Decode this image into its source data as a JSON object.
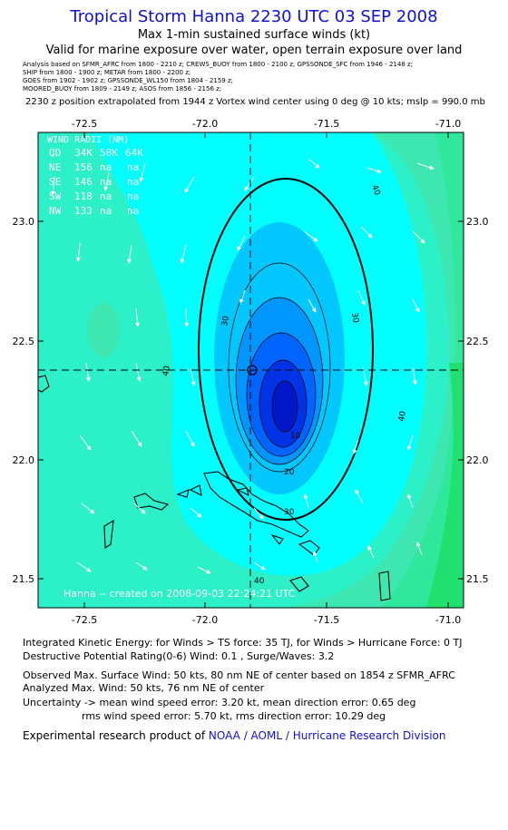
{
  "header": {
    "title": "Tropical Storm Hanna 2230 UTC 03 SEP 2008",
    "subtitle1": "Max 1-min sustained surface winds (kt)",
    "subtitle2": "Valid for marine exposure over water, open terrain exposure over land",
    "analysis_lines": [
      "Analysis based on  SFMR_AFRC from 1800 - 2210 z;  CREWS_BUOY from 1800 - 2100 z;  GPSSONDE_SFC from 1946 - 2148 z;",
      "SHIP from 1800 - 1900 z;  METAR from 1800 - 2200 z;",
      "GOES from 1902 - 1902 z;  GPSSONDE_WL150 from 1804 - 2159 z;",
      "MOORED_BUOY from 1809 - 2149 z;  ASOS from 1856 - 2156 z;"
    ],
    "position_note": "2230 z position extrapolated from 1944 z Vortex wind center using 0 deg @ 10 kts; mslp = 990.0 mb"
  },
  "map": {
    "lon_ticks": [
      "-72.5",
      "-72.0",
      "-71.5",
      "-71.0"
    ],
    "lat_ticks": [
      "23.0",
      "22.5",
      "22.0",
      "21.5"
    ],
    "contour_labels": [
      "40",
      "30",
      "30",
      "40",
      "40",
      "10",
      "20",
      "30",
      "40",
      "40"
    ],
    "credit": "Hanna -- created on 2008-09-03 22:24:21 UTC",
    "wind_radii": {
      "title": "WIND RADII (NM)",
      "header": [
        "QD",
        "34K",
        "50K",
        "64K"
      ],
      "rows": [
        [
          "NE",
          "156",
          "na",
          "na"
        ],
        [
          "SE",
          "146",
          "na",
          "na"
        ],
        [
          "SW",
          "118",
          "na",
          "na"
        ],
        [
          "NW",
          "133",
          "na",
          "na"
        ]
      ]
    },
    "colors": {
      "outer": "#3ee6b0",
      "band1": "#2cf0c8",
      "band2": "#00ffff",
      "band3": "#00c8ff",
      "band4": "#0096ff",
      "band5": "#0064ff",
      "core": "#0032e6"
    }
  },
  "info": {
    "ike": "Integrated Kinetic Energy:  for Winds > TS force: 35 TJ,  for Winds > Hurricane Force: 0 TJ",
    "dpr": "Destructive Potential Rating(0-6)   Wind: 0.1 , Surge/Waves: 3.2",
    "obs_max": "Observed Max. Surface Wind: 50 kts, 80 nm NE of center based on 1854 z SFMR_AFRC",
    "ana_max": "Analyzed Max. Wind: 50 kts, 76 nm NE of center",
    "unc1": "Uncertainty -> mean wind speed error: 3.20 kt,   mean direction error: 0.65 deg",
    "unc2": "rms wind speed error: 5.70 kt,   rms direction error: 10.29 deg",
    "product_prefix": "Experimental research product of ",
    "product_org": "NOAA / AOML / Hurricane Research Division"
  }
}
